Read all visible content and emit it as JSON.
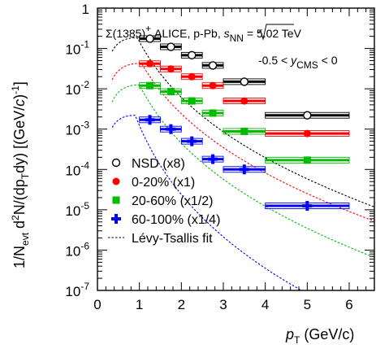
{
  "chart_data": {
    "type": "scatter",
    "log_y": true,
    "title": "",
    "xlabel": {
      "main": "p",
      "sub": "T",
      "unit": " (GeV/c)"
    },
    "ylabel": {
      "p1": "1/N",
      "p1_sub": "evt",
      "p2": " d",
      "p2_sup": "2",
      "p3": "N/(dp",
      "p3_sub": "T",
      "p4": "dy) [(GeV/",
      "p4_italic": "c",
      "p5": ")",
      "p5_sup": "-1",
      "p6": "]"
    },
    "xlim": [
      0,
      6.6
    ],
    "ylim": [
      1e-07,
      1
    ],
    "x_ticks": [
      "0",
      "1",
      "2",
      "3",
      "4",
      "5",
      "6"
    ],
    "y_ticks": [
      {
        "base": "1",
        "exp": ""
      },
      {
        "base": "10",
        "exp": "-1"
      },
      {
        "base": "10",
        "exp": "-2"
      },
      {
        "base": "10",
        "exp": "-3"
      },
      {
        "base": "10",
        "exp": "-4"
      },
      {
        "base": "10",
        "exp": "-5"
      },
      {
        "base": "10",
        "exp": "-6"
      },
      {
        "base": "10",
        "exp": "-7"
      }
    ],
    "annotation": {
      "line1_a": "Σ(1385)",
      "line1_sup": "+",
      "line1_b": "  ALICE, p-Pb, ",
      "line1_c": "s",
      "line1_sub": "NN",
      "line1_d": " = 5.02 TeV",
      "line2_a": "-0.5 < ",
      "line2_b": "y",
      "line2_sub": "CMS",
      "line2_c": " < 0"
    },
    "series": [
      {
        "name": "NSD (x8)",
        "marker": "open-circle",
        "color": "#000000",
        "points": [
          {
            "x": 1.25,
            "xlo": 1.0,
            "xhi": 1.5,
            "y": 0.175
          },
          {
            "x": 1.75,
            "xlo": 1.5,
            "xhi": 2.0,
            "y": 0.11
          },
          {
            "x": 2.25,
            "xlo": 2.0,
            "xhi": 2.5,
            "y": 0.068
          },
          {
            "x": 2.75,
            "xlo": 2.5,
            "xhi": 3.0,
            "y": 0.038
          },
          {
            "x": 3.5,
            "xlo": 3.0,
            "xhi": 4.0,
            "y": 0.015
          },
          {
            "x": 5.0,
            "xlo": 4.0,
            "xhi": 6.0,
            "y": 0.0022
          }
        ],
        "fit": {
          "A": 0.185,
          "mu": 0.95,
          "sigma": 0.8,
          "slope": 1.9
        }
      },
      {
        "name": "0-20% (x1)",
        "marker": "filled-circle",
        "color": "#ff0000",
        "points": [
          {
            "x": 1.25,
            "xlo": 1.0,
            "xhi": 1.5,
            "y": 0.042
          },
          {
            "x": 1.75,
            "xlo": 1.5,
            "xhi": 2.0,
            "y": 0.031
          },
          {
            "x": 2.25,
            "xlo": 2.0,
            "xhi": 2.5,
            "y": 0.02
          },
          {
            "x": 2.75,
            "xlo": 2.5,
            "xhi": 3.0,
            "y": 0.012
          },
          {
            "x": 3.5,
            "xlo": 3.0,
            "xhi": 4.0,
            "y": 0.005
          },
          {
            "x": 5.0,
            "xlo": 4.0,
            "xhi": 6.0,
            "y": 0.00078
          }
        ],
        "fit": {
          "A": 0.043,
          "mu": 1.05,
          "sigma": 0.8,
          "slope": 1.85
        }
      },
      {
        "name": "20-60% (x1/2)",
        "marker": "filled-square",
        "color": "#00bb00",
        "points": [
          {
            "x": 1.25,
            "xlo": 1.0,
            "xhi": 1.5,
            "y": 0.012
          },
          {
            "x": 1.75,
            "xlo": 1.5,
            "xhi": 2.0,
            "y": 0.0085
          },
          {
            "x": 2.25,
            "xlo": 2.0,
            "xhi": 2.5,
            "y": 0.005
          },
          {
            "x": 2.75,
            "xlo": 2.5,
            "xhi": 3.0,
            "y": 0.0025
          },
          {
            "x": 3.5,
            "xlo": 3.0,
            "xhi": 4.0,
            "y": 0.00088
          },
          {
            "x": 5.0,
            "xlo": 4.0,
            "xhi": 6.0,
            "y": 0.00017
          }
        ],
        "fit": {
          "A": 0.0125,
          "mu": 1.0,
          "sigma": 0.75,
          "slope": 2.0
        }
      },
      {
        "name": "60-100% (x1/4)",
        "marker": "filled-cross",
        "color": "#0000ff",
        "points": [
          {
            "x": 1.25,
            "xlo": 1.0,
            "xhi": 1.5,
            "y": 0.0017
          },
          {
            "x": 1.75,
            "xlo": 1.5,
            "xhi": 2.0,
            "y": 0.001
          },
          {
            "x": 2.25,
            "xlo": 2.0,
            "xhi": 2.5,
            "y": 0.0005
          },
          {
            "x": 2.75,
            "xlo": 2.5,
            "xhi": 3.0,
            "y": 0.00018
          },
          {
            "x": 3.5,
            "xlo": 3.0,
            "xhi": 4.0,
            "y": 0.0001
          },
          {
            "x": 5.0,
            "xlo": 4.0,
            "xhi": 6.0,
            "y": 1.25e-05
          }
        ],
        "fit": {
          "A": 0.0022,
          "mu": 0.9,
          "sigma": 0.8,
          "slope": 2.4
        }
      }
    ],
    "fit_legend": "Lévy-Tsallis fit",
    "legend_position": "bottom-left"
  }
}
